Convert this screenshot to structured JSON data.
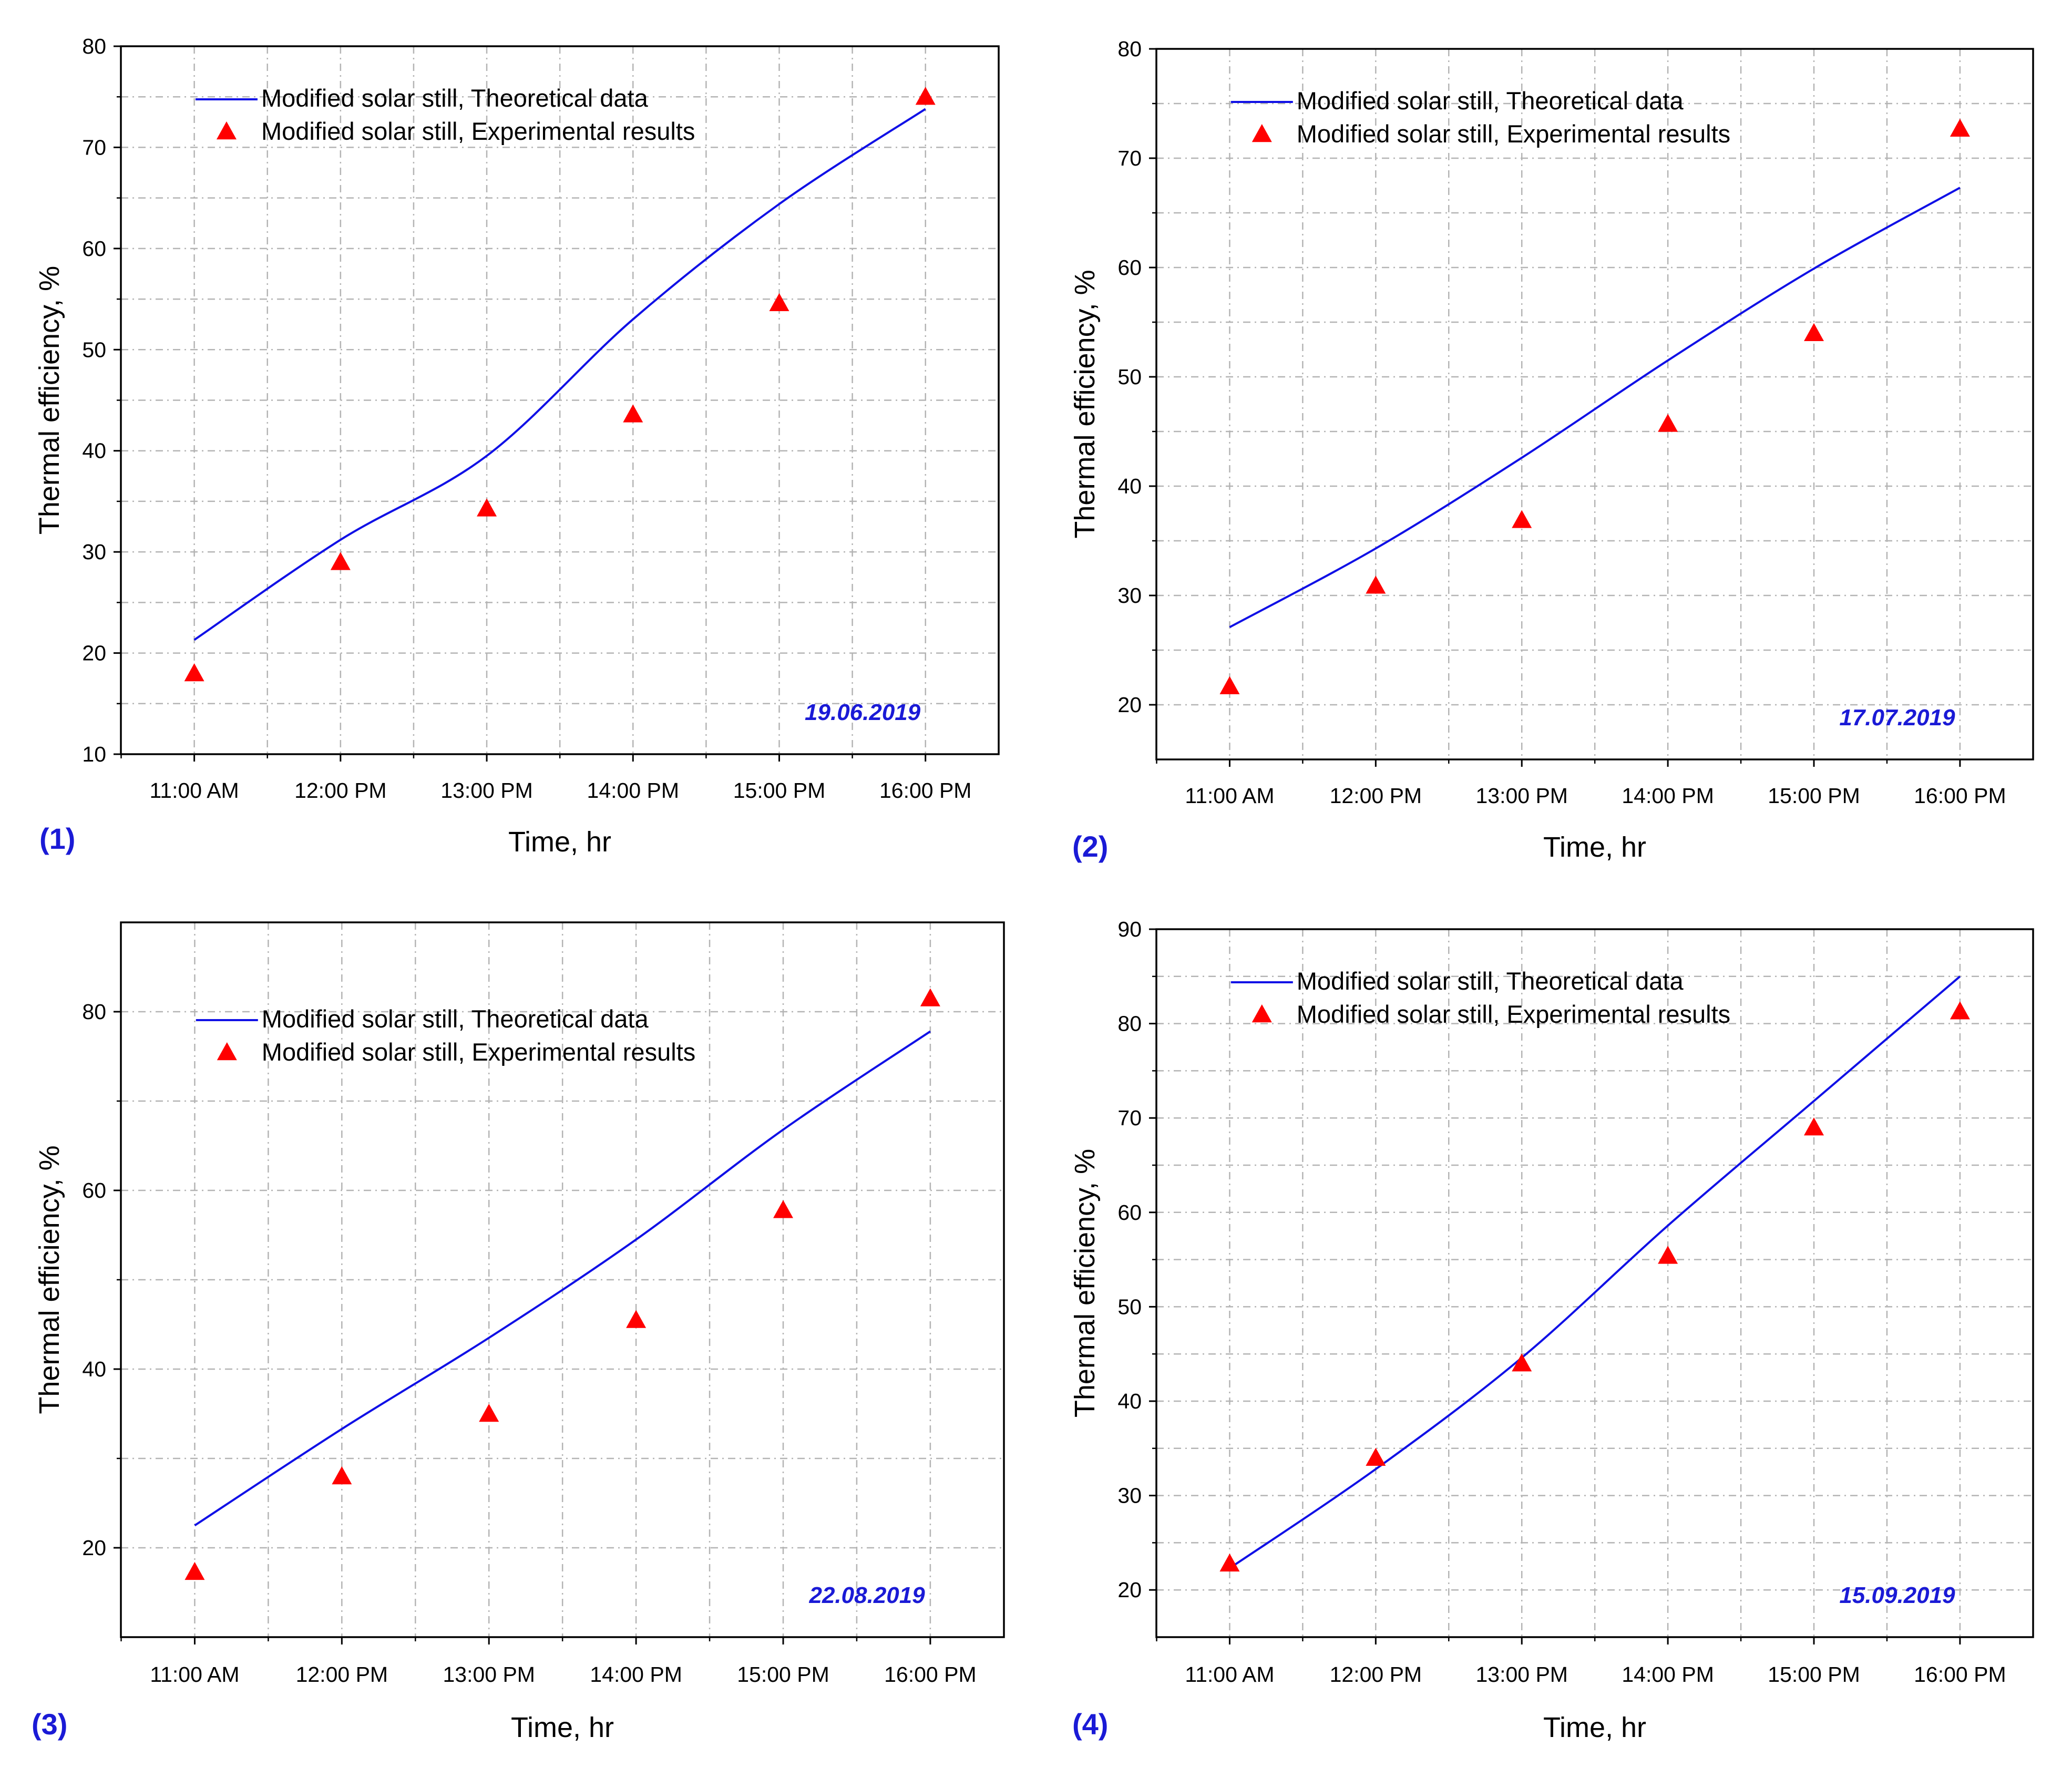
{
  "colors": {
    "theory": "#1010e6",
    "experiment": "#ff0000",
    "date": "#1a1ad6",
    "panel_label": "#1a1ad6",
    "grid": "#b4b4b4",
    "axis": "#000000"
  },
  "chart_data": [
    {
      "type": "line",
      "panel_label": "(1)",
      "annotation": "19.06.2019",
      "xlabel": "Time, hr",
      "ylabel": "Thermal efficiency, %",
      "categories": [
        "11:00 AM",
        "12:00 PM",
        "13:00 PM",
        "14:00 PM",
        "15:00 PM",
        "16:00 PM"
      ],
      "ylim": [
        10,
        80
      ],
      "yticks": [
        10,
        20,
        30,
        40,
        50,
        60,
        70,
        80
      ],
      "legend_position": "top-left",
      "series": [
        {
          "name": "Modified solar still, Theoretical data",
          "kind": "line",
          "values": [
            21.3,
            31.2,
            39.5,
            53.0,
            64.4,
            73.8
          ]
        },
        {
          "name": "Modified solar still, Experimental results",
          "kind": "marker",
          "values": [
            18.0,
            29.0,
            34.3,
            43.6,
            54.6,
            75.0
          ]
        }
      ]
    },
    {
      "type": "line",
      "panel_label": "(2)",
      "annotation": "17.07.2019",
      "xlabel": "Time, hr",
      "ylabel": "Thermal efficiency, %",
      "categories": [
        "11:00 AM",
        "12:00 PM",
        "13:00 PM",
        "14:00 PM",
        "15:00 PM",
        "16:00 PM"
      ],
      "ylim": [
        15,
        80
      ],
      "yticks": [
        20,
        30,
        40,
        50,
        60,
        70,
        80
      ],
      "legend_position": "top-left",
      "series": [
        {
          "name": "Modified solar still, Theoretical data",
          "kind": "line",
          "values": [
            27.1,
            34.3,
            42.6,
            51.5,
            59.9,
            67.3
          ]
        },
        {
          "name": "Modified solar still, Experimental results",
          "kind": "marker",
          "values": [
            21.7,
            30.9,
            36.9,
            45.7,
            54.0,
            72.7
          ]
        }
      ]
    },
    {
      "type": "line",
      "panel_label": "(3)",
      "annotation": "22.08.2019",
      "xlabel": "Time, hr",
      "ylabel": "Thermal efficiency, %",
      "categories": [
        "11:00 AM",
        "12:00 PM",
        "13:00 PM",
        "14:00 PM",
        "15:00 PM",
        "16:00 PM"
      ],
      "ylim": [
        10,
        90
      ],
      "yticks": [
        20,
        40,
        60,
        80
      ],
      "legend_position": "top-left",
      "series": [
        {
          "name": "Modified solar still, Theoretical data",
          "kind": "line",
          "values": [
            22.5,
            33.3,
            43.5,
            54.5,
            66.8,
            77.8
          ]
        },
        {
          "name": "Modified solar still, Experimental results",
          "kind": "marker",
          "values": [
            17.3,
            28.0,
            35.0,
            45.5,
            57.8,
            81.5
          ]
        }
      ]
    },
    {
      "type": "line",
      "panel_label": "(4)",
      "annotation": "15.09.2019",
      "xlabel": "Time, hr",
      "ylabel": "Thermal efficiency, %",
      "categories": [
        "11:00 AM",
        "12:00 PM",
        "13:00 PM",
        "14:00 PM",
        "15:00 PM",
        "16:00 PM"
      ],
      "ylim": [
        15,
        90
      ],
      "yticks": [
        20,
        30,
        40,
        50,
        60,
        70,
        80,
        90
      ],
      "legend_position": "top-left",
      "series": [
        {
          "name": "Modified solar still, Theoretical data",
          "kind": "line",
          "values": [
            22.3,
            32.8,
            44.6,
            58.6,
            71.8,
            85.0
          ]
        },
        {
          "name": "Modified solar still, Experimental results",
          "kind": "marker",
          "values": [
            22.8,
            34.0,
            44.0,
            55.4,
            69.0,
            81.3
          ]
        }
      ]
    }
  ]
}
